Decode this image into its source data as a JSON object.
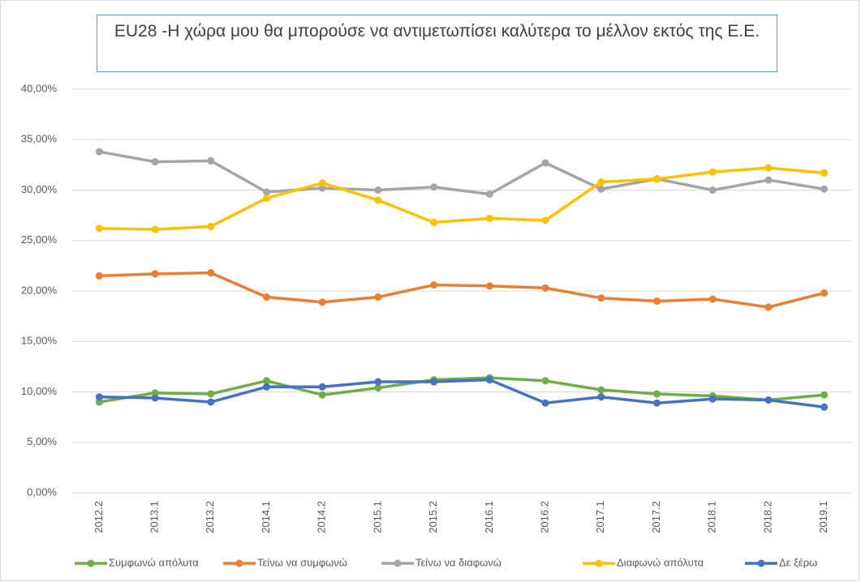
{
  "chart_data": {
    "type": "line",
    "title": "EU28 -Η χώρα μου θα μπορούσε να αντιμετωπίσει καλύτερα το μέλλον εκτός της Ε.Ε.",
    "categories": [
      "2012.2",
      "2013.1",
      "2013.2",
      "2014.1",
      "2014.2",
      "2015.1",
      "2015.2",
      "2016.1",
      "2016.2",
      "2017.1",
      "2017.2",
      "2018.1",
      "2018.2",
      "2019.1"
    ],
    "series": [
      {
        "name": "Συμφωνώ απόλυτα",
        "color": "#70ad47",
        "values": [
          9.0,
          9.9,
          9.8,
          11.1,
          9.7,
          10.4,
          11.2,
          11.4,
          11.1,
          10.2,
          9.8,
          9.6,
          9.2,
          9.7
        ]
      },
      {
        "name": "Τείνω να συμφωνώ",
        "color": "#ed7d31",
        "values": [
          21.5,
          21.7,
          21.8,
          19.4,
          18.9,
          19.4,
          20.6,
          20.5,
          20.3,
          19.3,
          19.0,
          19.2,
          18.4,
          19.8
        ]
      },
      {
        "name": "Τείνω να διαφωνώ",
        "color": "#a5a5a5",
        "values": [
          33.8,
          32.8,
          32.9,
          29.8,
          30.2,
          30.0,
          30.3,
          29.6,
          32.7,
          30.1,
          31.1,
          30.0,
          31.0,
          30.1
        ]
      },
      {
        "name": "Διαφωνώ απόλυτα",
        "color": "#ffc000",
        "values": [
          26.2,
          26.1,
          26.4,
          29.2,
          30.7,
          29.0,
          26.8,
          27.2,
          27.0,
          30.8,
          31.1,
          31.8,
          32.2,
          31.7
        ]
      },
      {
        "name": "Δε ξέρω",
        "color": "#4472c4",
        "values": [
          9.5,
          9.4,
          9.0,
          10.5,
          10.5,
          11.0,
          11.0,
          11.2,
          8.9,
          9.5,
          8.9,
          9.3,
          9.2,
          8.5
        ]
      }
    ],
    "ylim": [
      0,
      40
    ],
    "yticks": [
      {
        "value": 0,
        "label": "0,00%"
      },
      {
        "value": 5,
        "label": "5,00%"
      },
      {
        "value": 10,
        "label": "10,00%"
      },
      {
        "value": 15,
        "label": "15,00%"
      },
      {
        "value": 20,
        "label": "20,00%"
      },
      {
        "value": 25,
        "label": "25,00%"
      },
      {
        "value": 30,
        "label": "30,00%"
      },
      {
        "value": 35,
        "label": "35,00%"
      },
      {
        "value": 40,
        "label": "40,00%"
      }
    ],
    "grid": true,
    "legend": "bottom"
  }
}
